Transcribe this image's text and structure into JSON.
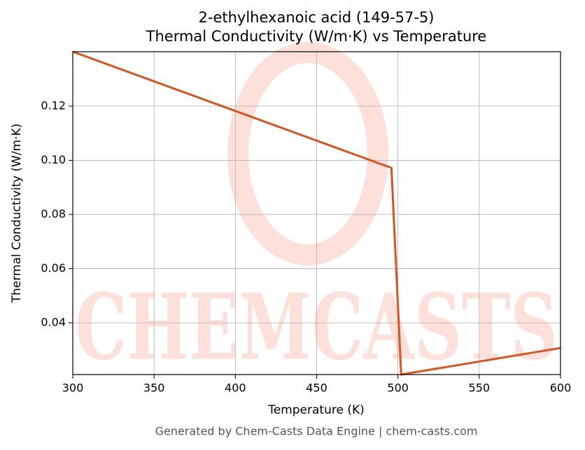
{
  "chart_data": {
    "type": "line",
    "title": "2-ethylhexanoic acid (149-57-5)",
    "subtitle": "Thermal Conductivity (W/m·K) vs Temperature",
    "xlabel": "Temperature (K)",
    "ylabel": "Thermal Conductivity (W/m·K)",
    "footer": "Generated by Chem-Casts Data Engine | chem-casts.com",
    "watermark": "CHEMCASTS",
    "x": [
      300,
      496,
      502,
      600
    ],
    "series": [
      {
        "name": "Thermal Conductivity",
        "color": "#d9541e",
        "values": [
          0.1401,
          0.0972,
          0.0209,
          0.0307
        ]
      }
    ],
    "xlim": [
      300,
      600
    ],
    "xticks": [
      300,
      350,
      400,
      450,
      500,
      550,
      600
    ],
    "ylim": [
      0.0209,
      0.1401
    ],
    "yticks": [
      {
        "value": 0.04,
        "label": "0.04"
      },
      {
        "value": 0.06,
        "label": "0.06"
      },
      {
        "value": 0.08,
        "label": "0.08"
      },
      {
        "value": 0.1,
        "label": "0.10"
      },
      {
        "value": 0.12,
        "label": "0.12"
      }
    ],
    "grid": true
  }
}
